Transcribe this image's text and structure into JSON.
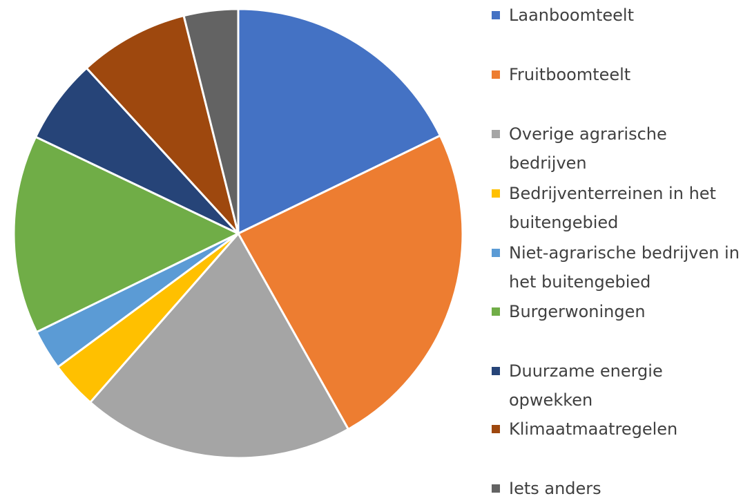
{
  "chart_data": {
    "type": "pie",
    "categories": [
      "Laanboomteelt",
      "Fruitboomteelt",
      "Overige agrarische bedrijven",
      "Bedrijventerreinen in het buitengebied",
      "Niet-agrarische bedrijven in het buitengebied",
      "Burgerwoningen",
      "Duurzame energie opwekken",
      "Klimaatmaatregelen",
      "Iets anders"
    ],
    "values": [
      17.8,
      24.0,
      19.6,
      3.4,
      2.9,
      14.3,
      6.1,
      7.9,
      3.9
    ],
    "colors": [
      "#4472c4",
      "#ed7d31",
      "#a5a5a5",
      "#ffc000",
      "#5b9bd5",
      "#70ad47",
      "#264478",
      "#9e480e",
      "#636363"
    ],
    "legend": "right"
  }
}
